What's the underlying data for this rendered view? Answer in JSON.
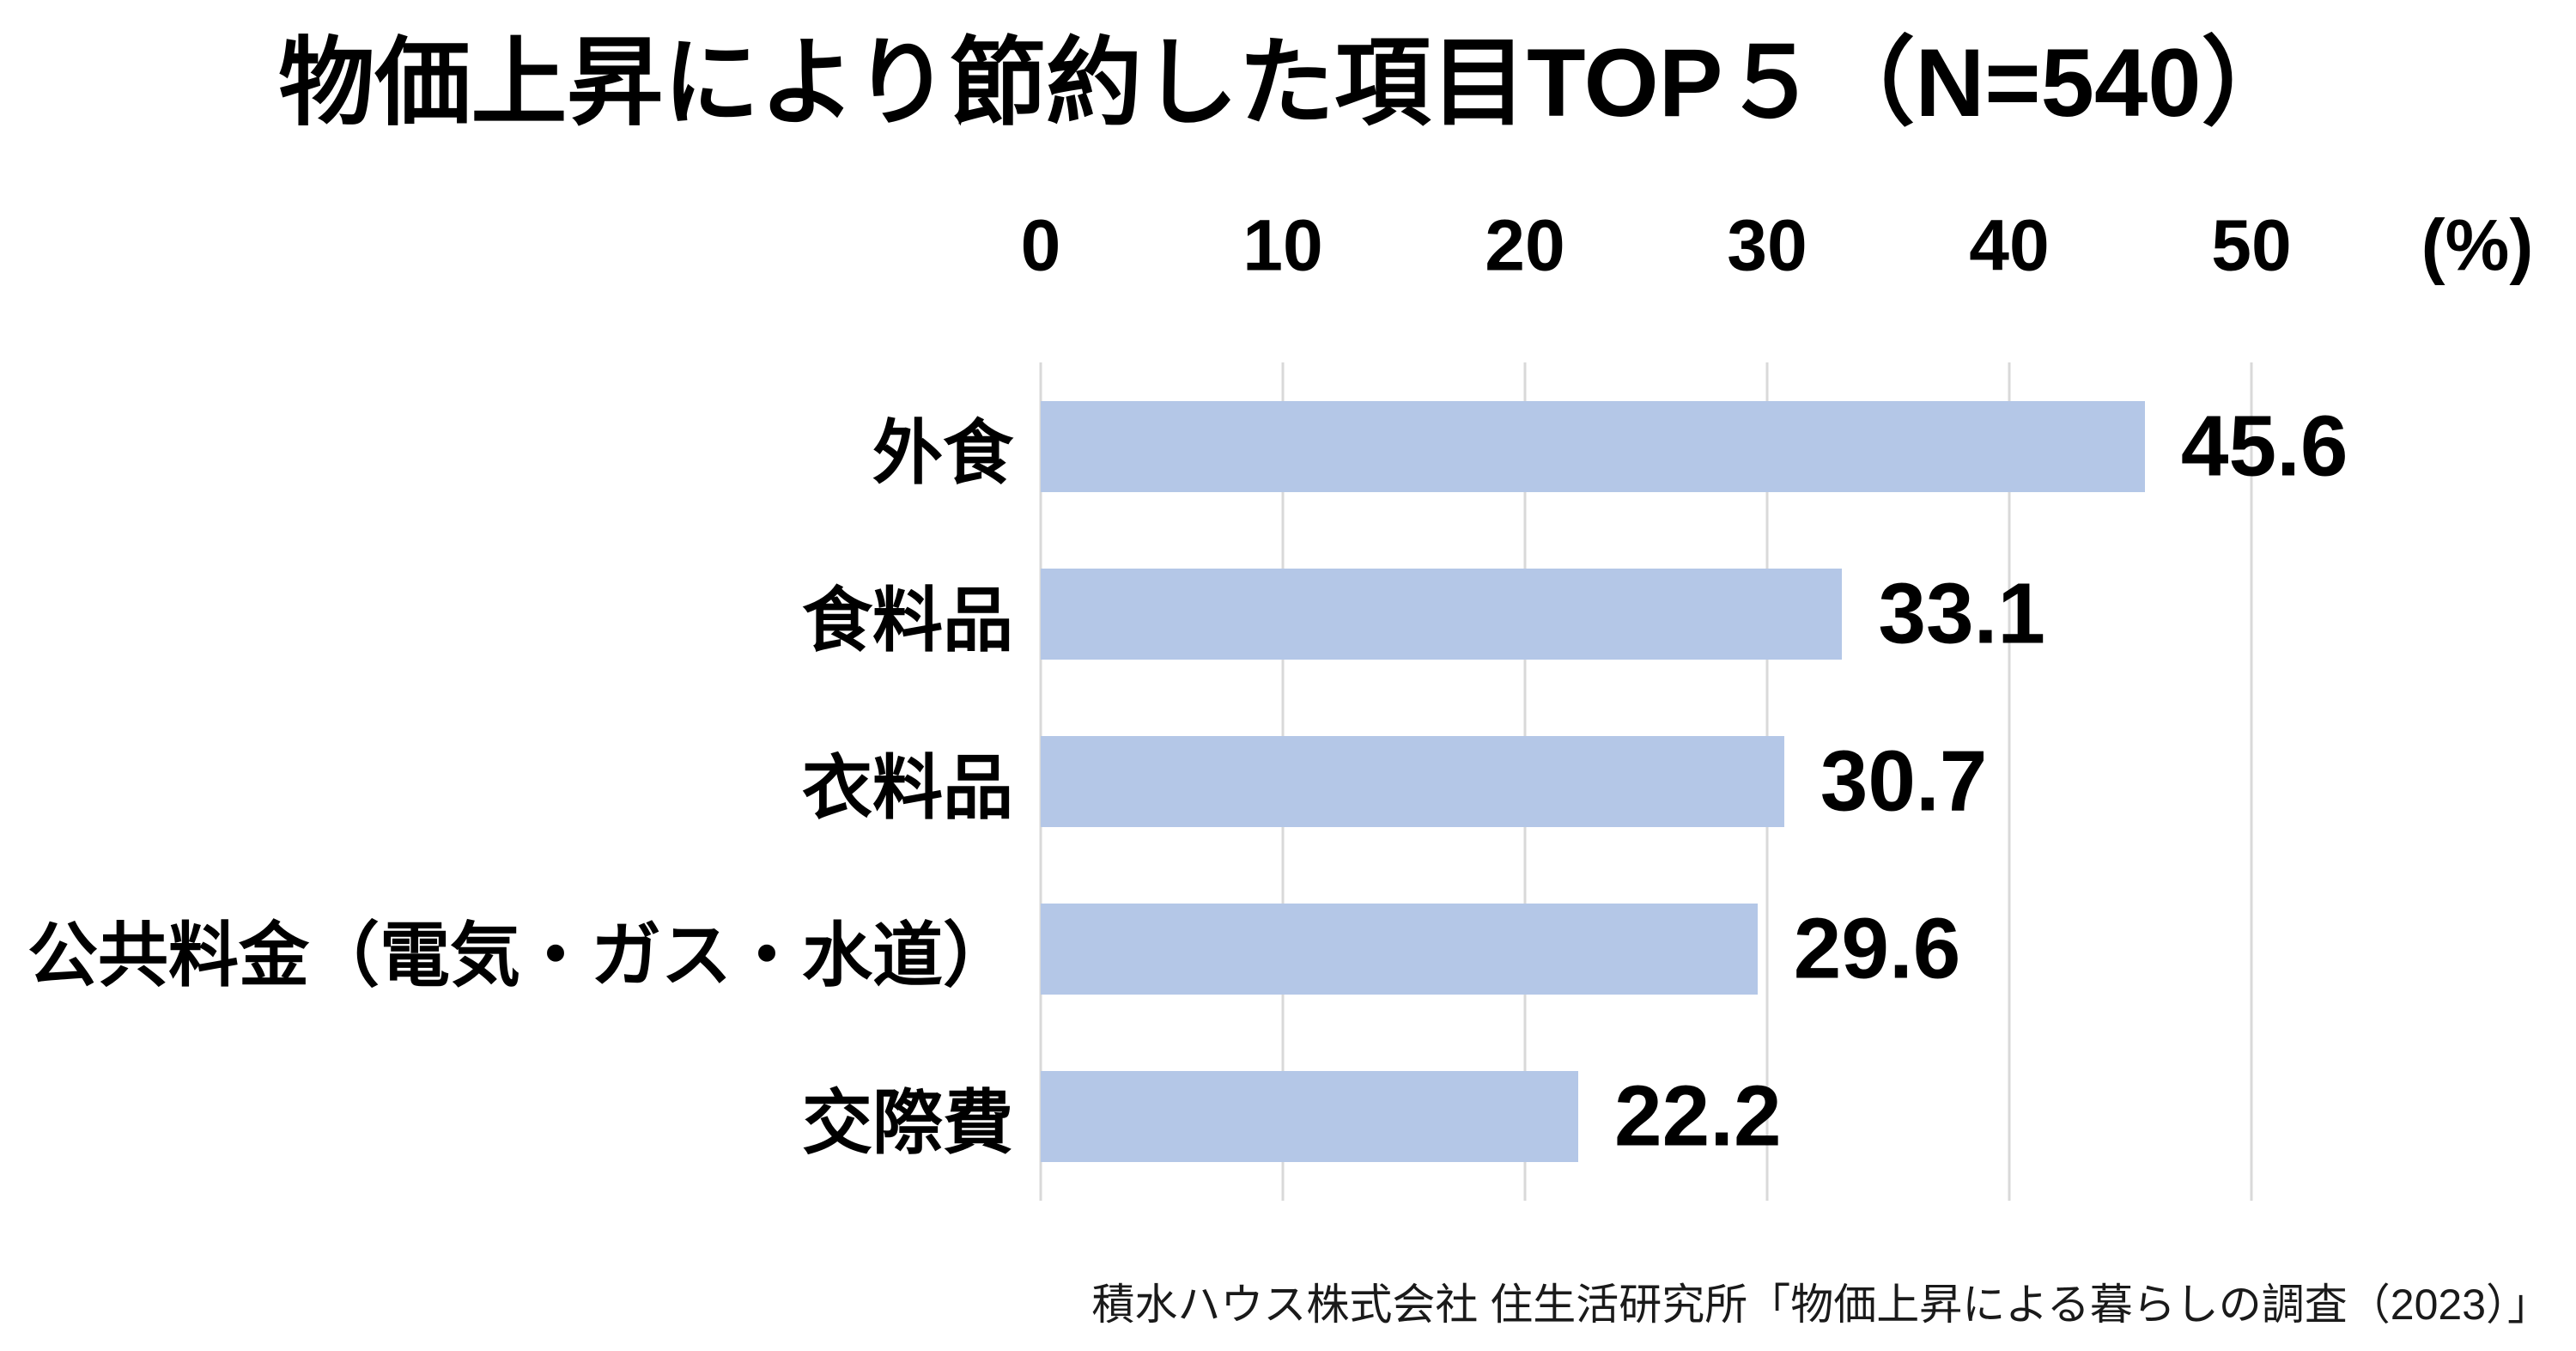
{
  "chart": {
    "title": "物価上昇により節約した項目TOP５（N=540）",
    "unit_label": "(%)",
    "source": "積水ハウス株式会社 住生活研究所「物価上昇による暮らしの調査（2023）」",
    "colors": {
      "bar": "#b4c7e7",
      "gridline": "#d9d9d9",
      "text": "#000000"
    }
  },
  "chart_data": {
    "type": "bar",
    "orientation": "horizontal",
    "title": "物価上昇により節約した項目TOP５（N=540）",
    "categories": [
      "外食",
      "食料品",
      "衣料品",
      "公共料金（電気・ガス・水道）",
      "交際費"
    ],
    "values": [
      45.6,
      33.1,
      30.7,
      29.6,
      22.2
    ],
    "value_labels": [
      "45.6",
      "33.1",
      "30.7",
      "29.6",
      "22.2"
    ],
    "xlabel": "(%)",
    "xlim": [
      0,
      50
    ],
    "xticks": [
      0,
      10,
      20,
      30,
      40,
      50
    ],
    "grid": "vertical-only",
    "legend": "none",
    "sample_size": "N=540",
    "source": "積水ハウス株式会社 住生活研究所「物価上昇による暮らしの調査（2023）」"
  }
}
